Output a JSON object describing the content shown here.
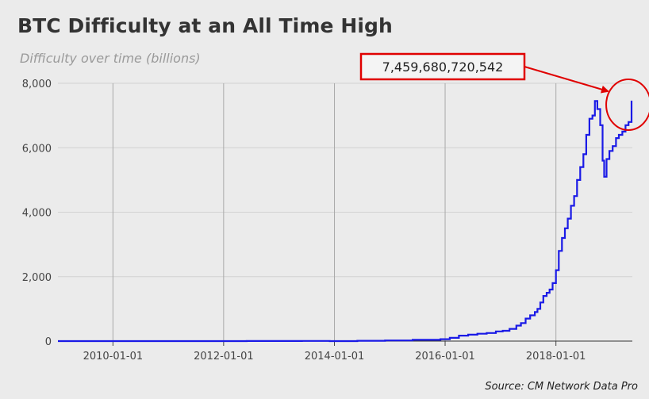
{
  "chart_data": {
    "type": "line",
    "title": "BTC Difficulty at an All Time High",
    "subtitle": "Difficulty over time (billions)",
    "source": "Source: CM Network Data Pro",
    "xlabel": "",
    "ylabel": "",
    "x_ticks": [
      "2010-01-01",
      "2012-01-01",
      "2014-01-01",
      "2016-01-01",
      "2018-01-01"
    ],
    "y_ticks": [
      "0",
      "2,000",
      "4,000",
      "6,000",
      "8,000"
    ],
    "ylim": [
      0,
      8000
    ],
    "xlim": [
      "2009-01-03",
      "2019-05-20"
    ],
    "grid": {
      "vertical": true,
      "horizontal": true
    },
    "series": [
      {
        "color": "#1a1ae6",
        "x": [
          "2009-01-03",
          "2010-06-01",
          "2011-06-01",
          "2012-06-01",
          "2013-06-01",
          "2013-12-01",
          "2014-06-01",
          "2014-12-01",
          "2015-06-01",
          "2015-12-01",
          "2016-02-01",
          "2016-04-01",
          "2016-06-01",
          "2016-08-01",
          "2016-10-01",
          "2016-12-01",
          "2017-01-15",
          "2017-03-01",
          "2017-04-15",
          "2017-05-15",
          "2017-06-15",
          "2017-07-15",
          "2017-08-15",
          "2017-09-01",
          "2017-09-20",
          "2017-10-10",
          "2017-11-01",
          "2017-11-20",
          "2017-12-10",
          "2018-01-01",
          "2018-01-20",
          "2018-02-10",
          "2018-03-01",
          "2018-03-20",
          "2018-04-10",
          "2018-05-01",
          "2018-05-20",
          "2018-06-10",
          "2018-07-01",
          "2018-07-20",
          "2018-08-10",
          "2018-08-30",
          "2018-09-15",
          "2018-10-01",
          "2018-10-20",
          "2018-11-05",
          "2018-11-15",
          "2018-12-01",
          "2018-12-20",
          "2019-01-10",
          "2019-02-01",
          "2019-02-20",
          "2019-03-15",
          "2019-04-05",
          "2019-04-25",
          "2019-05-15"
        ],
        "values": [
          0,
          0,
          1,
          2,
          4,
          1,
          10,
          20,
          40,
          60,
          100,
          170,
          200,
          230,
          250,
          300,
          320,
          380,
          480,
          560,
          700,
          800,
          900,
          1000,
          1200,
          1400,
          1500,
          1600,
          1800,
          2200,
          2800,
          3200,
          3500,
          3800,
          4200,
          4500,
          5000,
          5400,
          5800,
          6400,
          6900,
          7000,
          7450,
          7200,
          6700,
          5600,
          5100,
          5650,
          5900,
          6050,
          6300,
          6400,
          6500,
          6700,
          6800,
          7460
        ]
      }
    ],
    "annotation": {
      "label": "7,459,680,720,542",
      "x": "2019-05-15",
      "y": 7460
    }
  }
}
